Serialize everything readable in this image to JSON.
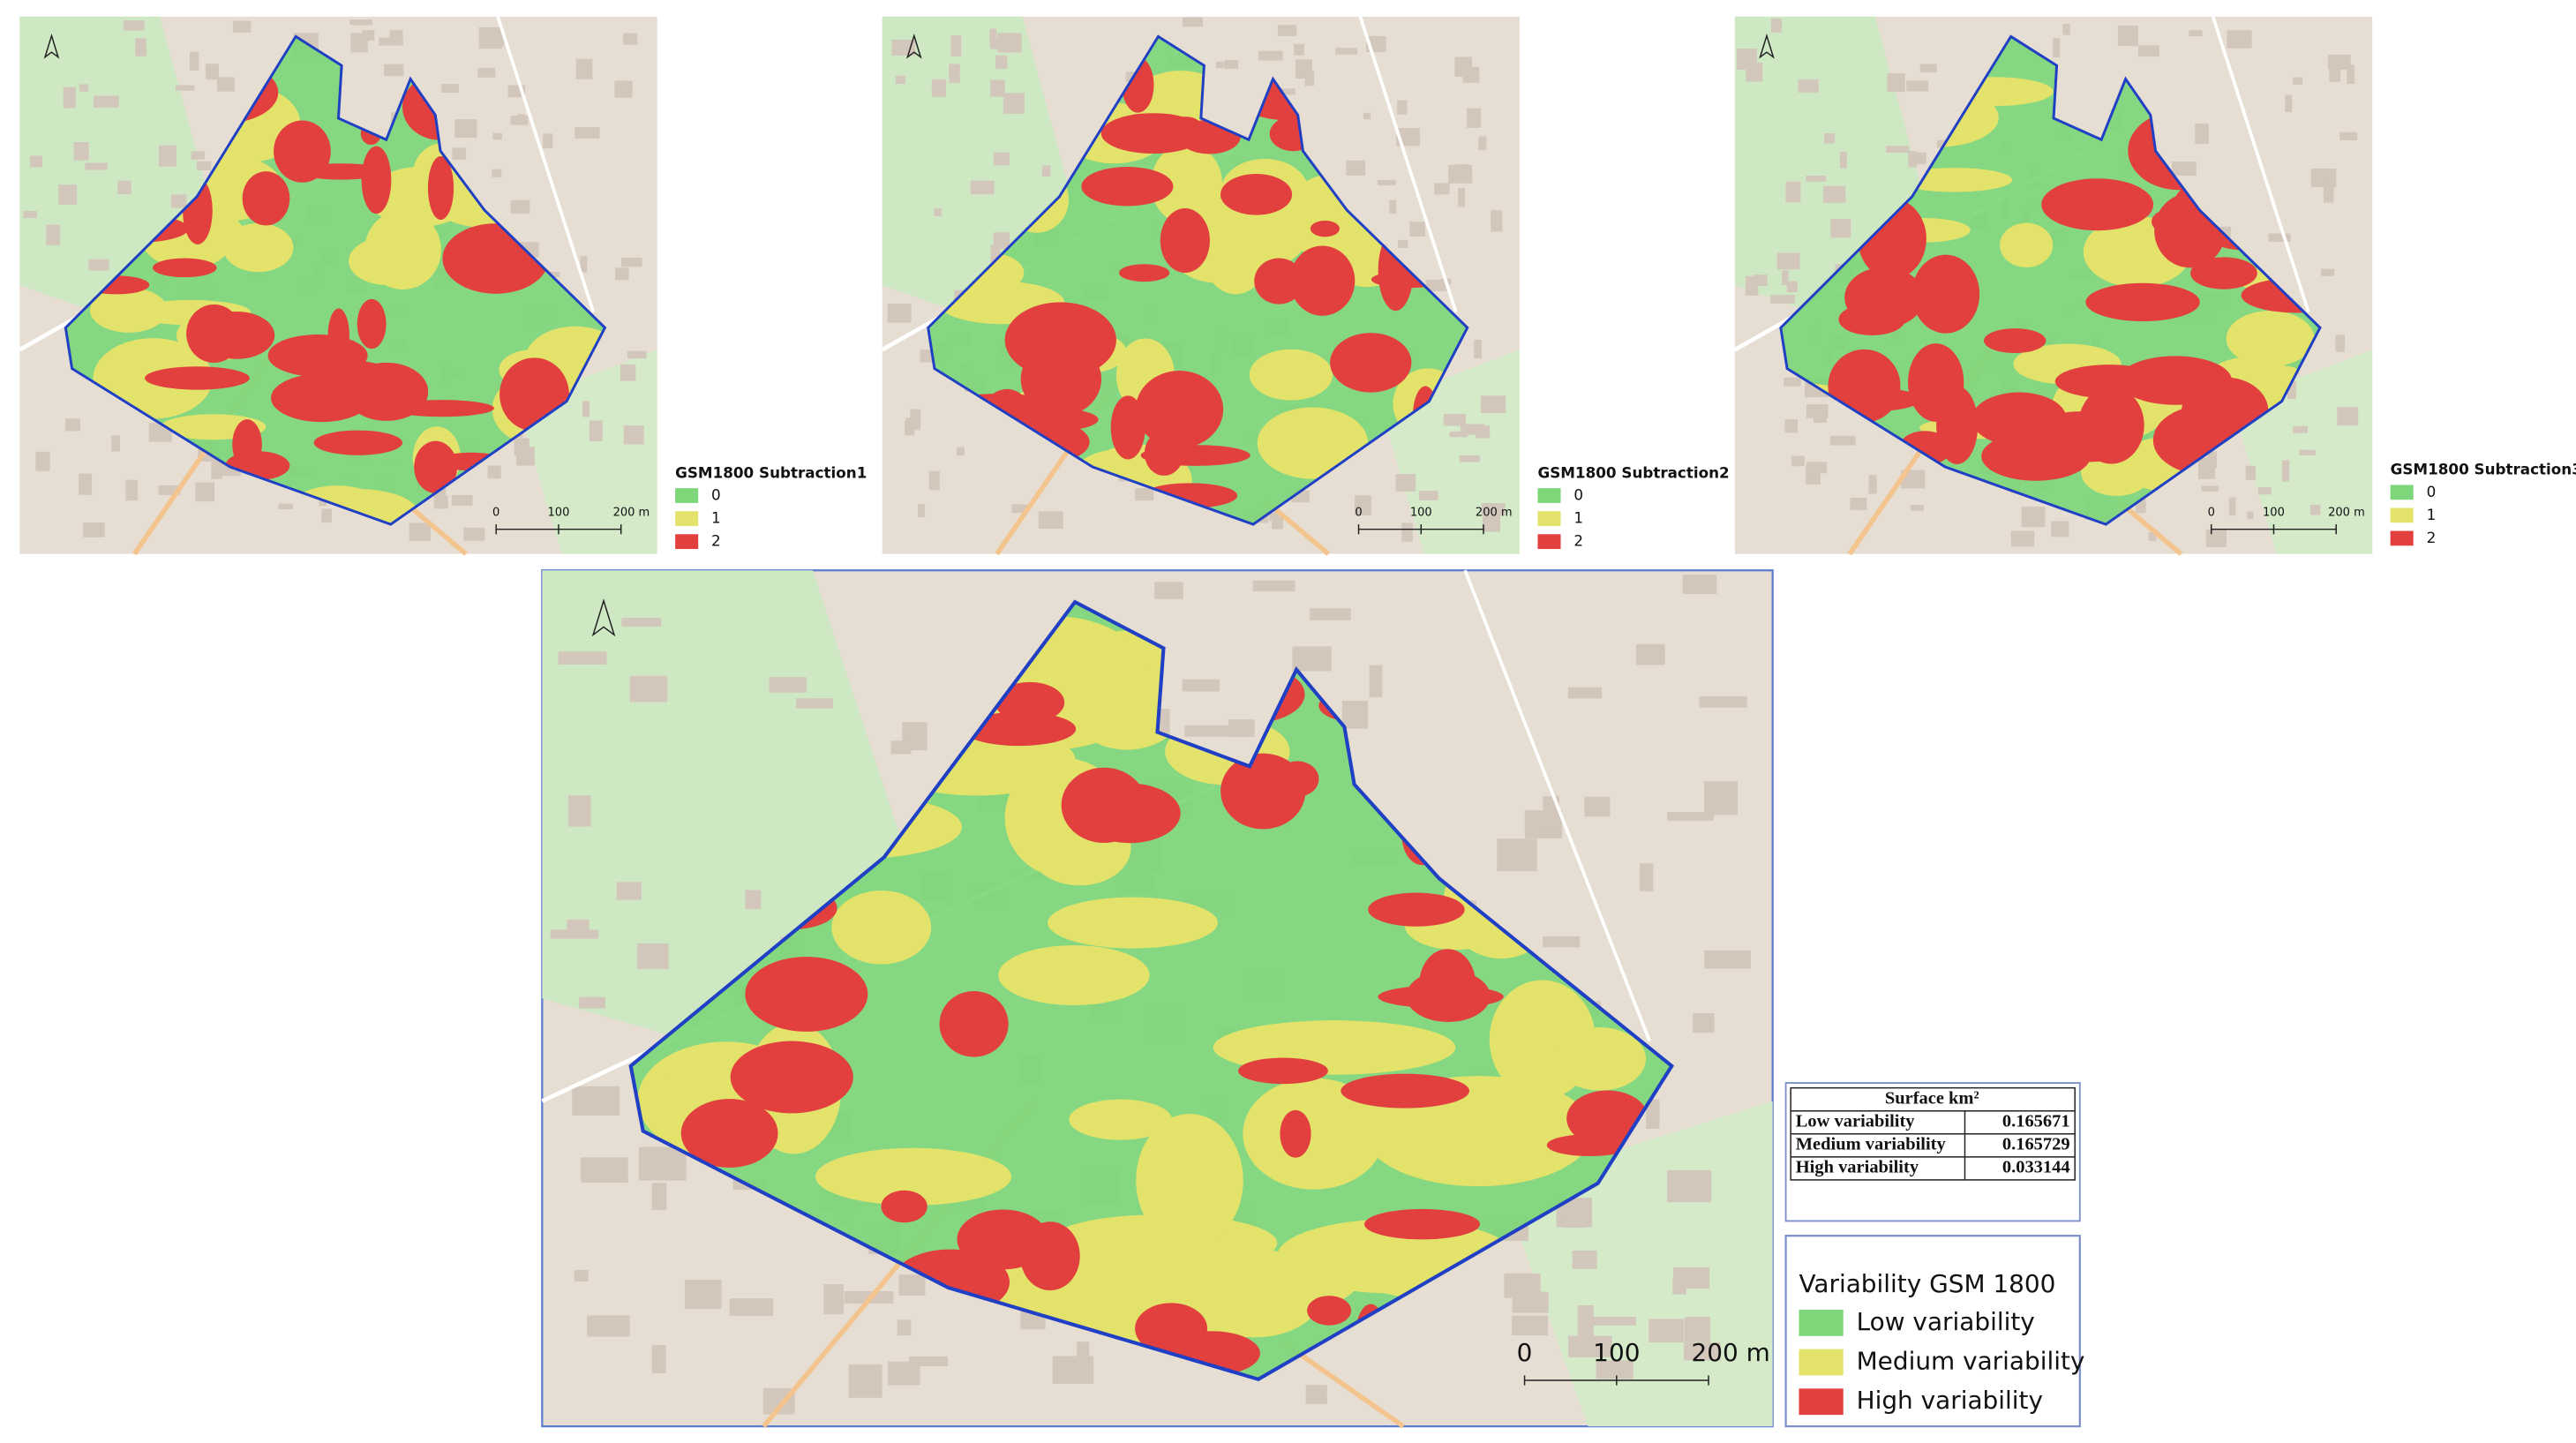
{
  "panels": [
    {
      "legend_title": "GSM1800 Subtraction1",
      "legend_items": [
        "0",
        "1",
        "2"
      ],
      "scale_labels": [
        "0",
        "100",
        "200 m"
      ]
    },
    {
      "legend_title": "GSM1800 Subtraction2",
      "legend_items": [
        "0",
        "1",
        "2"
      ],
      "scale_labels": [
        "0",
        "100",
        "200 m"
      ]
    },
    {
      "legend_title": "GSM1800 Subtraction3",
      "legend_items": [
        "0",
        "1",
        "2"
      ],
      "scale_labels": [
        "0",
        "100",
        "200 m"
      ]
    }
  ],
  "main": {
    "table": {
      "title": "Surface km²",
      "rows": [
        [
          "Low variability",
          0.165671
        ],
        [
          "Medium variability",
          0.165729
        ],
        [
          "High variability",
          0.033144
        ]
      ]
    },
    "legend": {
      "title": "Variability GSM 1800",
      "items": [
        "Low variability",
        "Medium variability",
        "High variability"
      ]
    },
    "scale_labels": [
      "0",
      "100",
      "200 m"
    ]
  }
}
